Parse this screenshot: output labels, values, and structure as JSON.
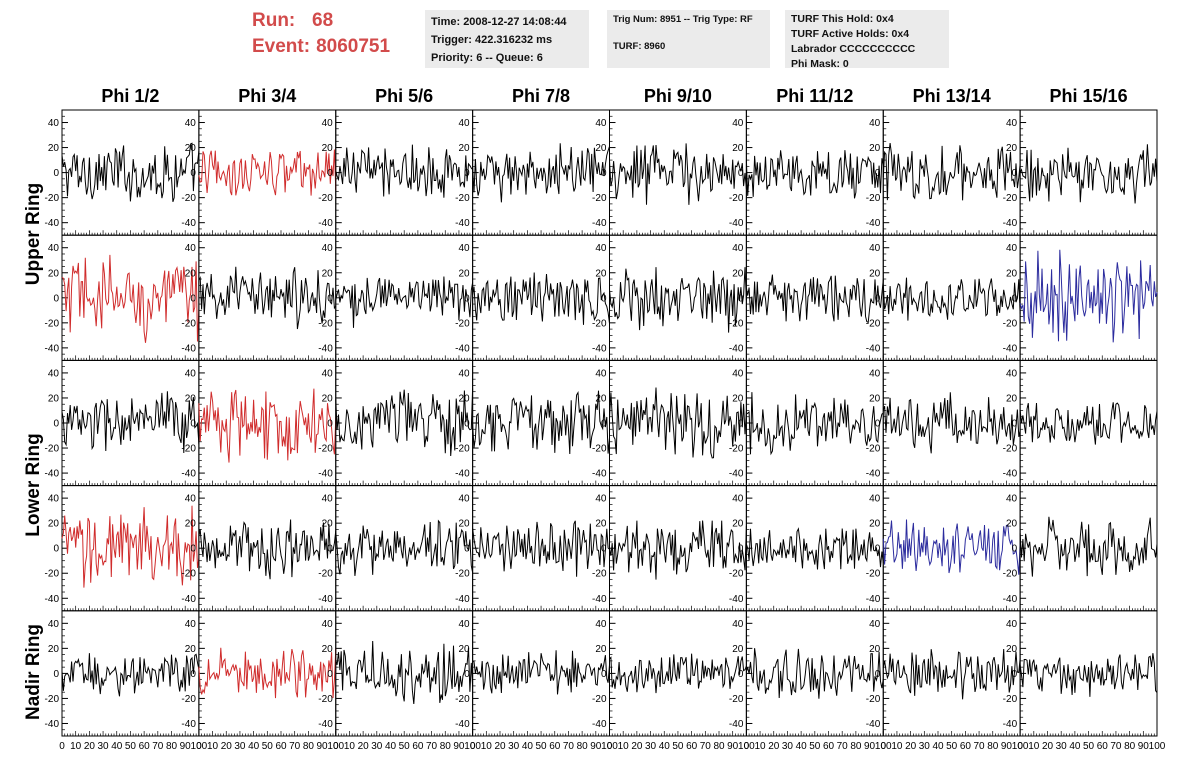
{
  "header": {
    "run_label": "Run:",
    "run_value": "68",
    "event_label": "Event:",
    "event_value": "8060751",
    "time": "Time: 2008-12-27 14:08:44",
    "trigger": "Trigger: 422.316232 ms",
    "priority": "Priority: 6 -- Queue: 6",
    "trig_num": "Trig Num: 8951 -- Trig Type: RF",
    "turf": "TURF: 8960",
    "turf_this_hold": "TURF This Hold: 0x4",
    "turf_active_holds": "TURF Active Holds: 0x4",
    "labrador": "Labrador CCCCCCCCCC",
    "phi_mask": "Phi Mask: 0"
  },
  "colors": {
    "normal": "#000000",
    "red": "#d02c2c",
    "blue": "#2c2c9e",
    "accent_text": "#d24b4b",
    "info_bg": "#ebebeb"
  },
  "chart_data": {
    "type": "line",
    "title": "",
    "columns": [
      "Phi 1/2",
      "Phi 3/4",
      "Phi 5/6",
      "Phi 7/8",
      "Phi 9/10",
      "Phi 11/12",
      "Phi 13/14",
      "Phi 15/16"
    ],
    "ring_labels": [
      {
        "text": "Upper Ring",
        "rows": [
          0,
          1
        ]
      },
      {
        "text": "Lower Ring",
        "rows": [
          2,
          3
        ]
      },
      {
        "text": "Nadir Ring",
        "rows": [
          4
        ]
      }
    ],
    "xlim": [
      0,
      100
    ],
    "ylim": [
      -50,
      50
    ],
    "xticks": [
      0,
      10,
      20,
      30,
      40,
      50,
      60,
      70,
      80,
      90,
      100
    ],
    "xtick_labels": [
      "0",
      "10",
      "20",
      "30",
      "40",
      "50",
      "60",
      "70",
      "80",
      "90",
      "100"
    ],
    "yticks": [
      -40,
      -20,
      0,
      20,
      40
    ],
    "ytick_labels": [
      "-40",
      "-20",
      "0",
      "20",
      "40"
    ],
    "grid": false,
    "panels": [
      [
        {
          "color": "normal",
          "amp": 17
        },
        {
          "color": "red",
          "amp": 14
        },
        {
          "color": "normal",
          "amp": 17
        },
        {
          "color": "normal",
          "amp": 16
        },
        {
          "color": "normal",
          "amp": 18
        },
        {
          "color": "normal",
          "amp": 13
        },
        {
          "color": "normal",
          "amp": 17
        },
        {
          "color": "normal",
          "amp": 17
        }
      ],
      [
        {
          "color": "red",
          "amp": 25
        },
        {
          "color": "normal",
          "amp": 16
        },
        {
          "color": "normal",
          "amp": 16
        },
        {
          "color": "normal",
          "amp": 16
        },
        {
          "color": "normal",
          "amp": 18
        },
        {
          "color": "normal",
          "amp": 14
        },
        {
          "color": "normal",
          "amp": 13
        },
        {
          "color": "blue",
          "amp": 26
        }
      ],
      [
        {
          "color": "normal",
          "amp": 18
        },
        {
          "color": "red",
          "amp": 22
        },
        {
          "color": "normal",
          "amp": 20
        },
        {
          "color": "normal",
          "amp": 18
        },
        {
          "color": "normal",
          "amp": 19
        },
        {
          "color": "normal",
          "amp": 17
        },
        {
          "color": "normal",
          "amp": 16
        },
        {
          "color": "normal",
          "amp": 12
        }
      ],
      [
        {
          "color": "red",
          "amp": 24
        },
        {
          "color": "normal",
          "amp": 17
        },
        {
          "color": "normal",
          "amp": 16
        },
        {
          "color": "normal",
          "amp": 16
        },
        {
          "color": "normal",
          "amp": 16
        },
        {
          "color": "normal",
          "amp": 13
        },
        {
          "color": "blue",
          "amp": 16
        },
        {
          "color": "normal",
          "amp": 17
        }
      ],
      [
        {
          "color": "normal",
          "amp": 12
        },
        {
          "color": "red",
          "amp": 14
        },
        {
          "color": "normal",
          "amp": 17
        },
        {
          "color": "normal",
          "amp": 12
        },
        {
          "color": "normal",
          "amp": 11
        },
        {
          "color": "normal",
          "amp": 14
        },
        {
          "color": "normal",
          "amp": 14
        },
        {
          "color": "normal",
          "amp": 13
        }
      ]
    ],
    "samples": 100
  }
}
